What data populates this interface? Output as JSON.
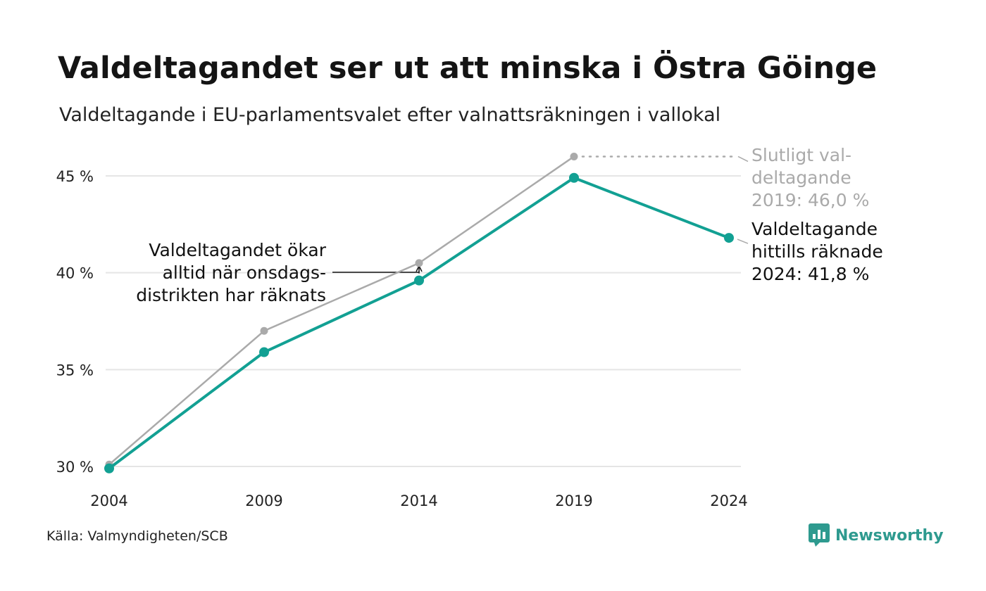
{
  "title": "Valdeltagandet ser ut att minska i Östra Göinge",
  "subtitle": "Valdeltagande i EU-parlamentsvalet efter valnattsräkningen i vallokal",
  "source": "Källa: Valmyndigheten/SCB",
  "brand": {
    "name": "Newsworthy",
    "icon": "newsworthy-logo-icon",
    "color": "#2e9a8f"
  },
  "colors": {
    "current": "#12a093",
    "final": "#aaaaaa",
    "grid": "#e5e5e5",
    "annotation": "#111111"
  },
  "chart_data": {
    "type": "line",
    "x": [
      "2004",
      "2009",
      "2014",
      "2019",
      "2024"
    ],
    "ylim": [
      30,
      46
    ],
    "yticks": [
      30,
      35,
      40,
      45
    ],
    "ytick_labels": [
      "30 %",
      "35 %",
      "40 %",
      "45 %"
    ],
    "grid": true,
    "series": [
      {
        "id": "final",
        "values": [
          30.1,
          37.0,
          40.5,
          46.0,
          null
        ]
      },
      {
        "id": "current",
        "values": [
          29.9,
          35.9,
          39.6,
          44.9,
          41.8
        ]
      }
    ],
    "annotations": {
      "final_label": [
        "Slutligt val-",
        "deltagande",
        "2019: 46,0 %"
      ],
      "current_label": [
        "Valdeltagande",
        "hittills räknade",
        "2024: 41,8 %"
      ],
      "note": [
        "Valdeltagandet ökar",
        "alltid när onsdags-",
        "distrikten har räknats"
      ]
    }
  }
}
